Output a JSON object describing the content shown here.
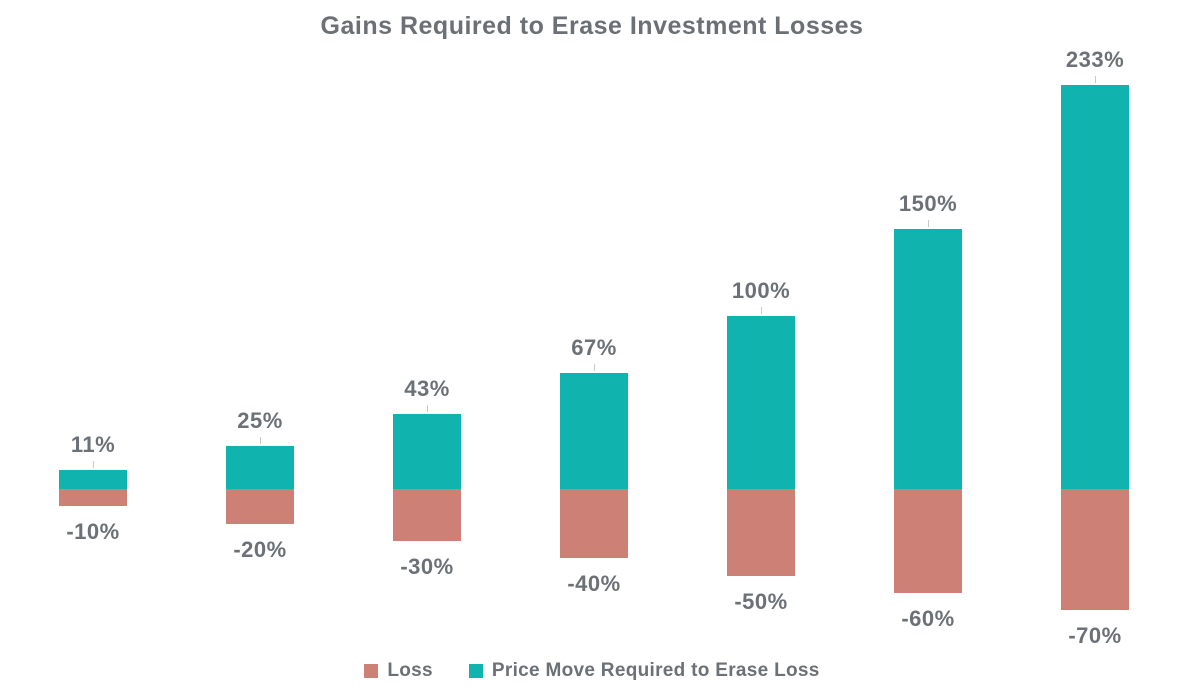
{
  "chart_data": {
    "type": "bar",
    "subtype": "diverging-stacked-column",
    "title": "Gains Required to Erase Investment Losses",
    "categories": [
      "-10%",
      "-20%",
      "-30%",
      "-40%",
      "-50%",
      "-60%",
      "-70%"
    ],
    "series": [
      {
        "name": "Loss",
        "values": [
          -10,
          -20,
          -30,
          -40,
          -50,
          -60,
          -70
        ],
        "color": "#cd8076"
      },
      {
        "name": "Price Move Required to Erase Loss",
        "values": [
          11,
          25,
          43,
          67,
          100,
          150,
          233
        ],
        "color": "#10b3ae"
      }
    ],
    "gain_labels": [
      "11%",
      "25%",
      "43%",
      "67%",
      "100%",
      "150%",
      "233%"
    ],
    "loss_labels": [
      "-10%",
      "-20%",
      "-30%",
      "-40%",
      "-50%",
      "-60%",
      "-70%"
    ],
    "ylim": [
      -70,
      233
    ],
    "grid": false,
    "axes_visible": false,
    "legend_position": "bottom-center",
    "legend": [
      {
        "label": "Loss",
        "color": "#cd8076"
      },
      {
        "label": "Price Move Required to Erase Loss",
        "color": "#10b3ae"
      }
    ],
    "colors": {
      "title_text": "#6a7076",
      "label_text": "#6b7177",
      "leader_line": "#c3c9cc",
      "background": "#ffffff"
    }
  }
}
